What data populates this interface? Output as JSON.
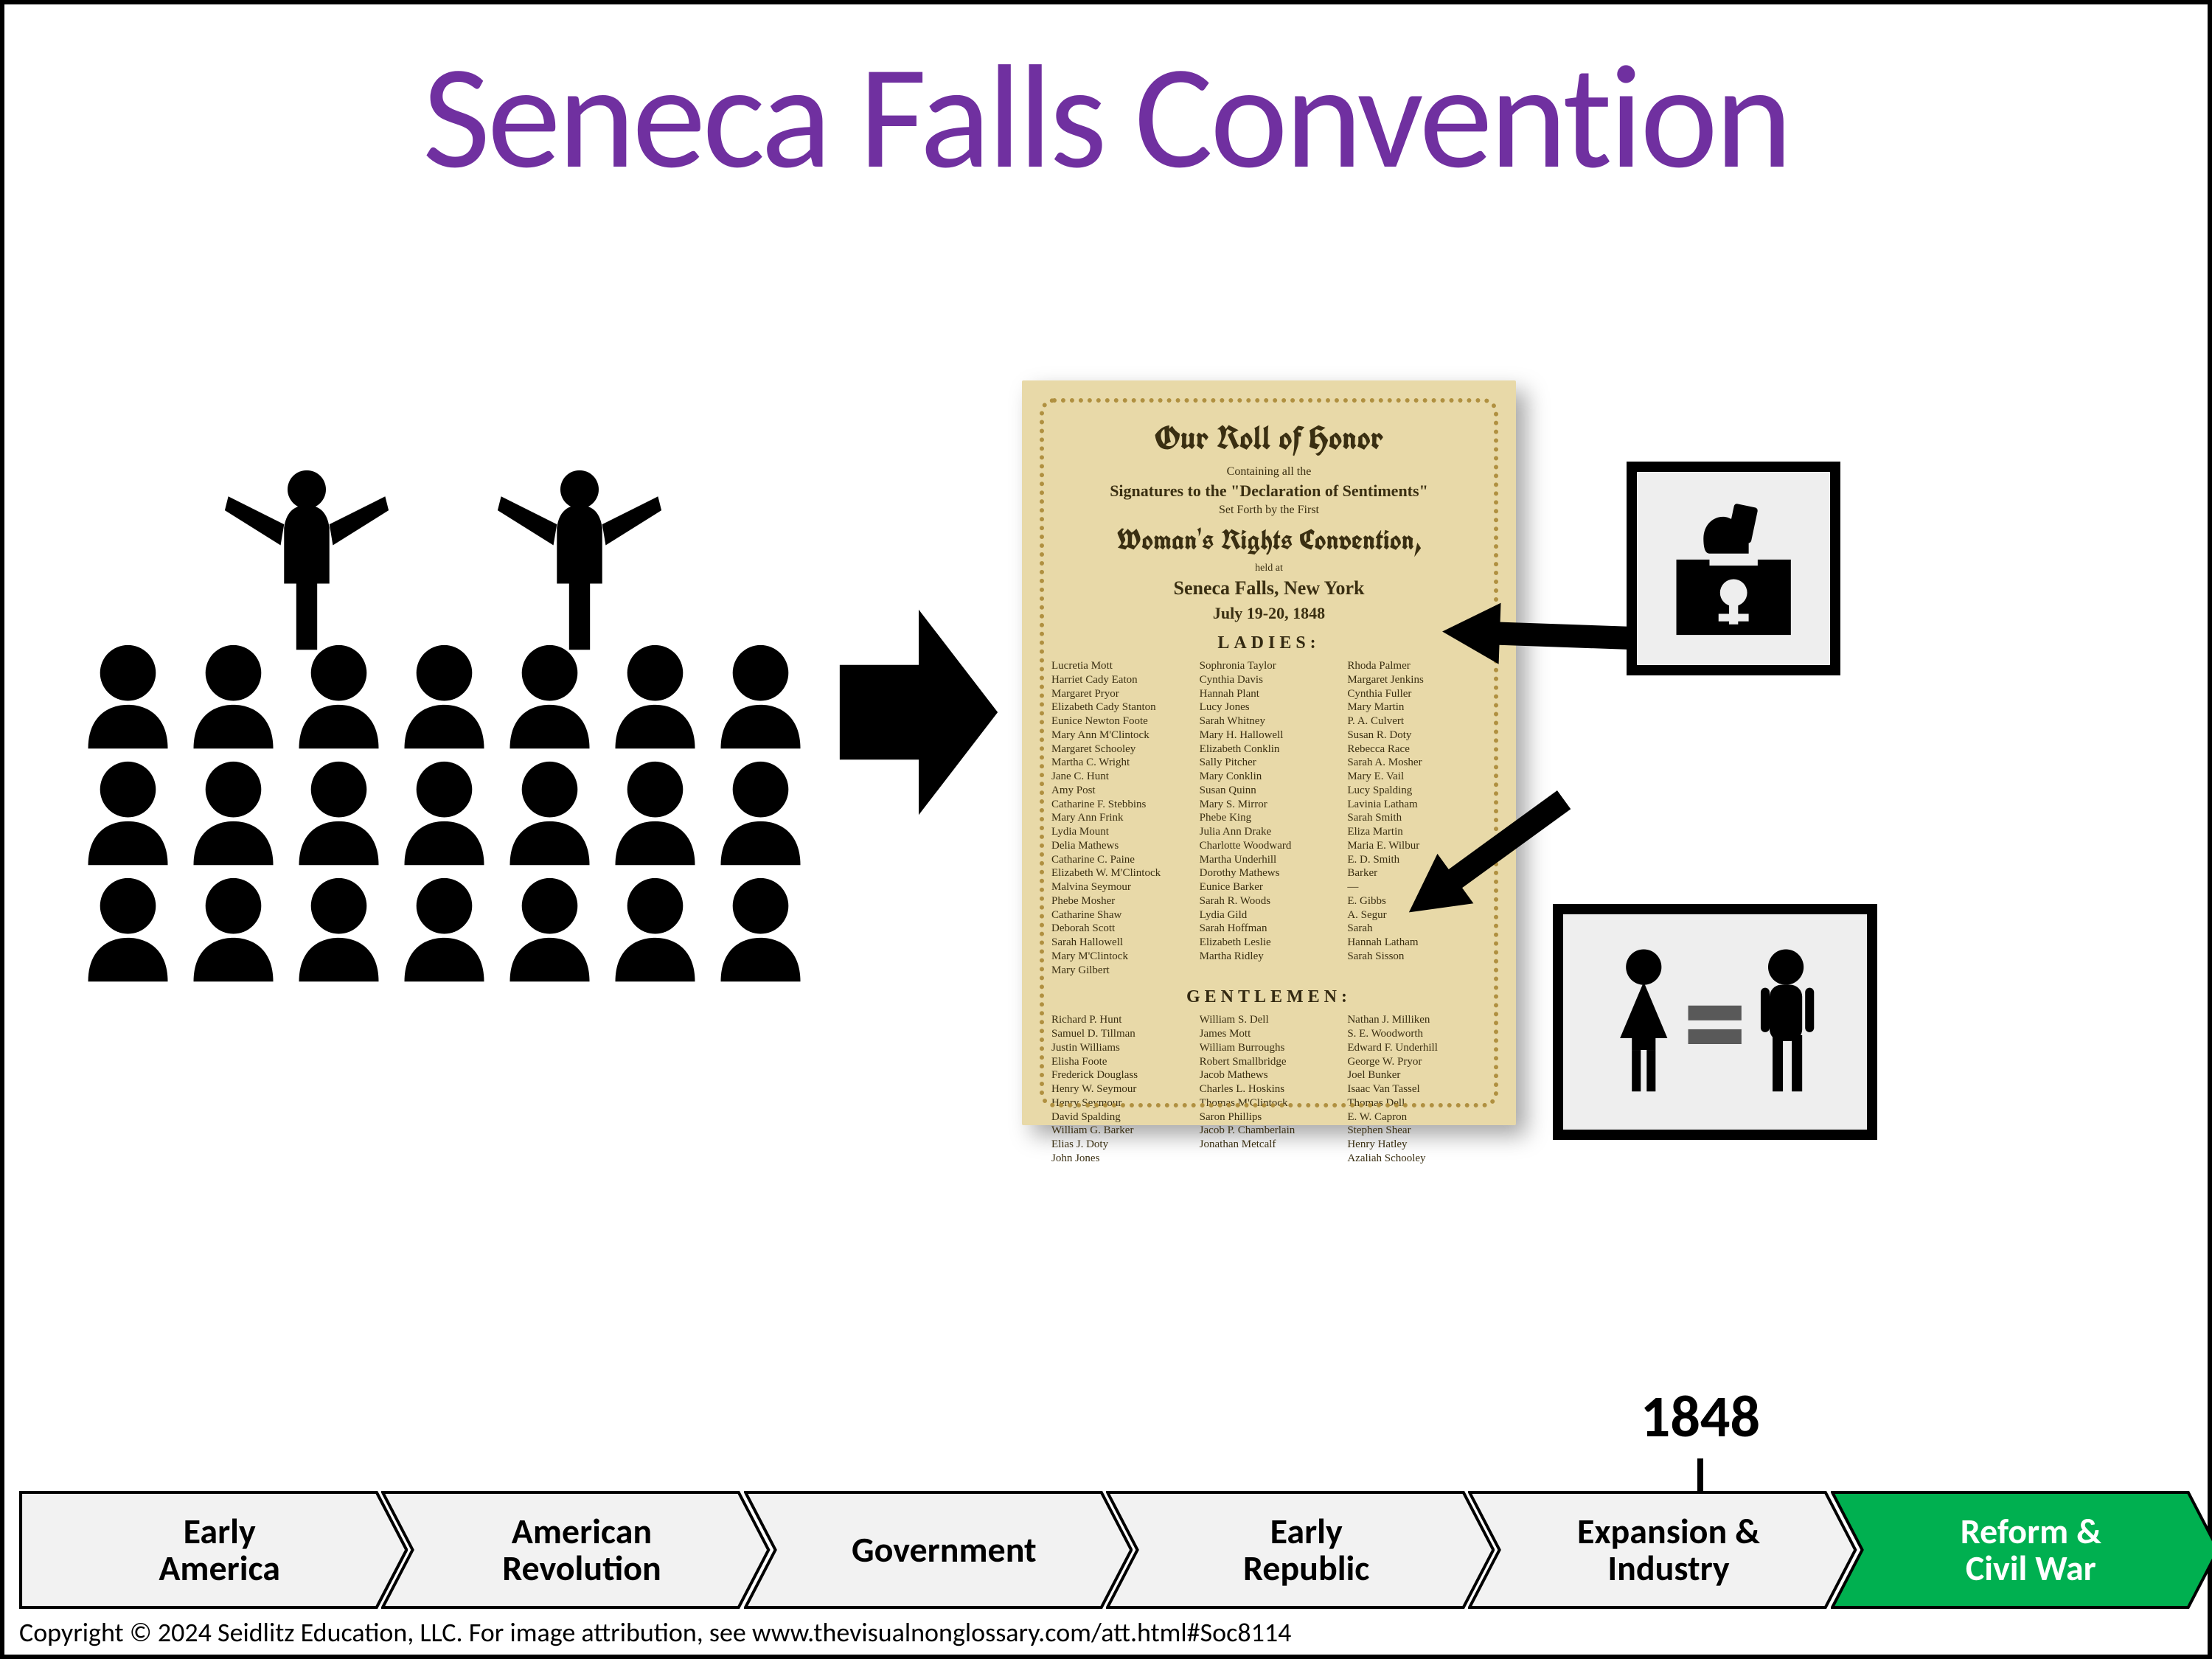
{
  "title": {
    "text": "Seneca Falls Convention",
    "color": "#7030a0"
  },
  "document": {
    "heading": "Our Roll of Honor",
    "sub1": "Containing all the",
    "sub2": "Signatures to the \"Declaration of Sentiments\"",
    "sub3": "Set Forth by the First",
    "main": "Woman's Rights Convention,",
    "held": "held at",
    "location": "Seneca Falls, New York",
    "dates": "July 19-20, 1848",
    "ladies_title": "LADIES:",
    "gentlemen_title": "GENTLEMEN:",
    "ladies_cols": [
      "Lucretia Mott\nHarriet Cady Eaton\nMargaret Pryor\nElizabeth Cady Stanton\nEunice Newton Foote\nMary Ann M'Clintock\nMargaret Schooley\nMartha C. Wright\nJane C. Hunt\nAmy Post\nCatharine F. Stebbins\nMary Ann Frink\nLydia Mount\nDelia Mathews\nCatharine C. Paine\nElizabeth W. M'Clintock\nMalvina Seymour\nPhebe Mosher\nCatharine Shaw\nDeborah Scott\nSarah Hallowell\nMary M'Clintock\nMary Gilbert",
      "Sophronia Taylor\nCynthia Davis\nHannah Plant\nLucy Jones\nSarah Whitney\nMary H. Hallowell\nElizabeth Conklin\nSally Pitcher\nMary Conklin\nSusan Quinn\nMary S. Mirror\nPhebe King\nJulia Ann Drake\nCharlotte Woodward\nMartha Underhill\nDorothy Mathews\nEunice Barker\nSarah R. Woods\nLydia Gild\nSarah Hoffman\nElizabeth Leslie\nMartha Ridley",
      "Rhoda Palmer\nMargaret Jenkins\nCynthia Fuller\nMary Martin\nP. A. Culvert\nSusan R. Doty\nRebecca Race\nSarah A. Mosher\nMary E. Vail\nLucy Spalding\nLavinia Latham\nSarah Smith\nEliza Martin\nMaria E. Wilbur\nE. D. Smith\nBarker\n—\nE. Gibbs\nA. Segur\nSarah\nHannah Latham\nSarah Sisson"
    ],
    "gent_cols": [
      "Richard P. Hunt\nSamuel D. Tillman\nJustin Williams\nElisha Foote\nFrederick Douglass\nHenry W. Seymour\nHenry Seymour\nDavid Spalding\nWilliam G. Barker\nElias J. Doty\nJohn Jones",
      "William S. Dell\nJames Mott\nWilliam Burroughs\nRobert Smallbridge\nJacob Mathews\nCharles L. Hoskins\nThomas M'Clintock\nSaron Phillips\nJacob P. Chamberlain\nJonathan Metcalf",
      "Nathan J. Milliken\nS. E. Woodworth\nEdward F. Underhill\nGeorge W. Pryor\nJoel Bunker\nIsaac Van Tassel\nThomas Dell\nE. W. Capron\nStephen Shear\nHenry Hatley\nAzaliah Schooley"
    ],
    "bg_color": "#e8d9a8",
    "border_color": "#b09040",
    "text_color": "#3a2f12"
  },
  "timeline": {
    "year": "1848",
    "year_position_pct": 78,
    "items": [
      {
        "label": "Early America",
        "active": false
      },
      {
        "label": "American Revolution",
        "active": false
      },
      {
        "label": "Government",
        "active": false
      },
      {
        "label": "Early Republic",
        "active": false
      },
      {
        "label": "Expansion & Industry",
        "active": false
      },
      {
        "label": "Reform & Civil War",
        "active": true
      }
    ],
    "inactive_fill": "#f2f2f2",
    "active_fill": "#00b050",
    "stroke": "#000000"
  },
  "icons": {
    "vote_box_name": "voting-box-icon",
    "equality_name": "gender-equality-icon"
  },
  "copyright": "Copyright © 2024 Seidlitz Education, LLC.  For image attribution, see www.thevisualnonglossary.com/att.html#Soc8114"
}
